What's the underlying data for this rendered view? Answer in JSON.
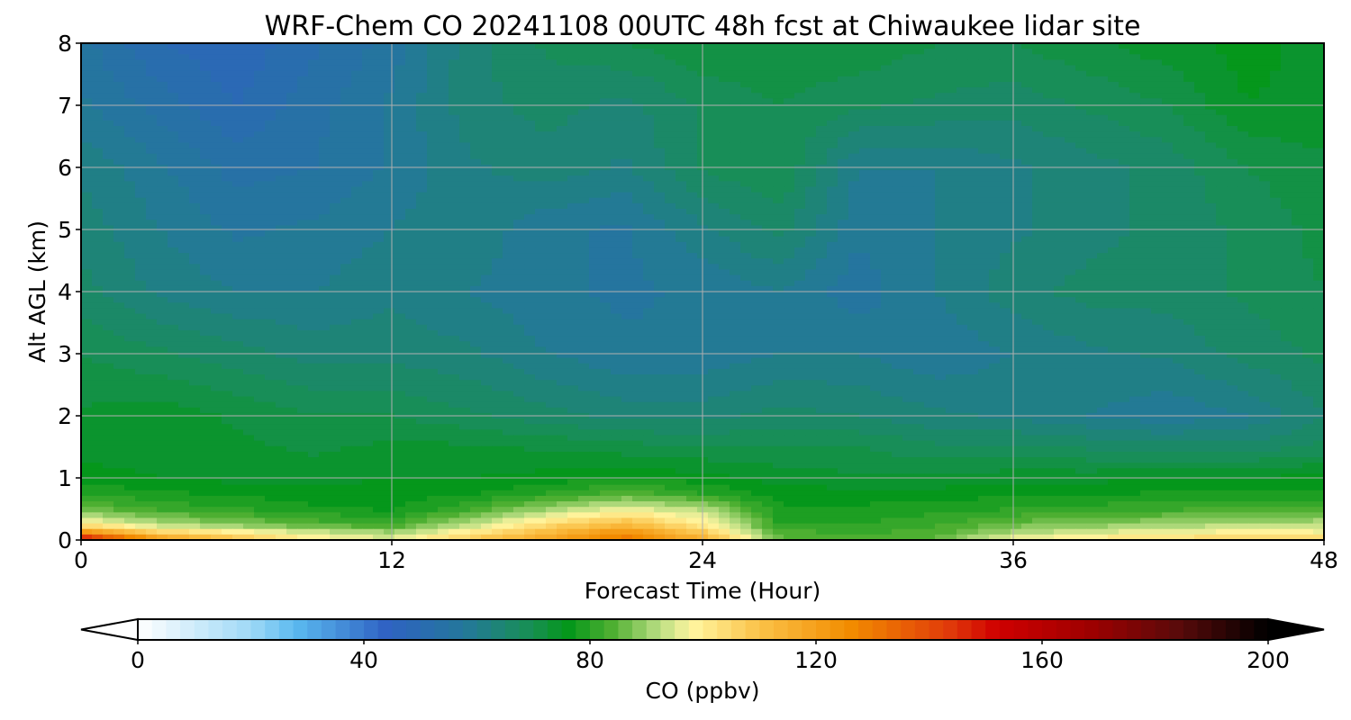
{
  "chart_data": {
    "type": "heatmap",
    "title": "WRF-Chem CO  20241108 00UTC 48h fcst at Chiwaukee lidar site",
    "xlabel": "Forecast Time (Hour)",
    "ylabel": "Alt AGL (km)",
    "xlim": [
      0,
      48
    ],
    "ylim": [
      0,
      8
    ],
    "xticks": [
      0,
      12,
      24,
      36,
      48
    ],
    "yticks": [
      0,
      1,
      2,
      3,
      4,
      5,
      6,
      7,
      8
    ],
    "grid": true,
    "x": [
      0,
      3,
      6,
      9,
      12,
      15,
      18,
      21,
      24,
      27,
      30,
      33,
      36,
      39,
      42,
      45,
      48
    ],
    "y": [
      0,
      0.1,
      0.25,
      0.5,
      0.75,
      1.0,
      1.5,
      2.0,
      3.0,
      4.0,
      5.0,
      6.0,
      7.0,
      8.0
    ],
    "z": [
      [
        158,
        122,
        110,
        100,
        96,
        108,
        118,
        130,
        116,
        86,
        84,
        86,
        98,
        102,
        105,
        107,
        106
      ],
      [
        128,
        108,
        102,
        96,
        92,
        102,
        114,
        126,
        110,
        84,
        82,
        84,
        92,
        96,
        98,
        100,
        99
      ],
      [
        100,
        92,
        88,
        84,
        82,
        92,
        104,
        112,
        100,
        80,
        80,
        82,
        86,
        88,
        90,
        92,
        92
      ],
      [
        86,
        82,
        80,
        78,
        77,
        82,
        90,
        96,
        92,
        78,
        78,
        79,
        80,
        81,
        82,
        83,
        84
      ],
      [
        80,
        78,
        77,
        76,
        76,
        77,
        80,
        84,
        80,
        76,
        76,
        76,
        77,
        77,
        78,
        78,
        78
      ],
      [
        76,
        75,
        74,
        74,
        75,
        75,
        76,
        77,
        76,
        74,
        73,
        73,
        74,
        74,
        75,
        75,
        76
      ],
      [
        74,
        74,
        73,
        72,
        73,
        73,
        72,
        71,
        70,
        70,
        70,
        68,
        68,
        67,
        66,
        66,
        68
      ],
      [
        73,
        74,
        72,
        70,
        70,
        68,
        66,
        64,
        64,
        66,
        65,
        63,
        62,
        60,
        58,
        60,
        65
      ],
      [
        70,
        68,
        66,
        64,
        64,
        63,
        60,
        58,
        58,
        60,
        60,
        58,
        60,
        62,
        63,
        66,
        68
      ],
      [
        66,
        62,
        60,
        60,
        62,
        60,
        58,
        57,
        58,
        60,
        56,
        60,
        64,
        66,
        66,
        68,
        70
      ],
      [
        64,
        60,
        57,
        58,
        60,
        62,
        58,
        57,
        62,
        66,
        58,
        60,
        62,
        64,
        66,
        68,
        71
      ],
      [
        62,
        58,
        54,
        55,
        58,
        62,
        64,
        62,
        68,
        70,
        60,
        60,
        62,
        64,
        66,
        70,
        72
      ],
      [
        58,
        54,
        50,
        54,
        58,
        64,
        66,
        64,
        68,
        70,
        68,
        67,
        66,
        68,
        70,
        75,
        74
      ],
      [
        56,
        50,
        48,
        52,
        56,
        64,
        68,
        70,
        72,
        72,
        72,
        70,
        70,
        72,
        74,
        76,
        74
      ]
    ],
    "colorbar": {
      "label": "CO  (ppbv)",
      "min": 0,
      "max": 200,
      "ticks": [
        0,
        40,
        80,
        120,
        160,
        200
      ],
      "extend": "both",
      "orientation": "horizontal",
      "placement": "bottom",
      "colors": [
        [
          0,
          "#ffffff"
        ],
        [
          20,
          "#9fd9f6"
        ],
        [
          28,
          "#5ab9ef"
        ],
        [
          44,
          "#2f62c3"
        ],
        [
          58,
          "#24789a"
        ],
        [
          70,
          "#179050"
        ],
        [
          76,
          "#03961a"
        ],
        [
          84,
          "#4fb032"
        ],
        [
          92,
          "#b6dc80"
        ],
        [
          98,
          "#fff6a0"
        ],
        [
          110,
          "#fbc248"
        ],
        [
          126,
          "#f28c00"
        ],
        [
          144,
          "#e0380a"
        ],
        [
          152,
          "#cf0000"
        ],
        [
          168,
          "#a00000"
        ],
        [
          184,
          "#5a0a0a"
        ],
        [
          200,
          "#000000"
        ]
      ]
    }
  }
}
